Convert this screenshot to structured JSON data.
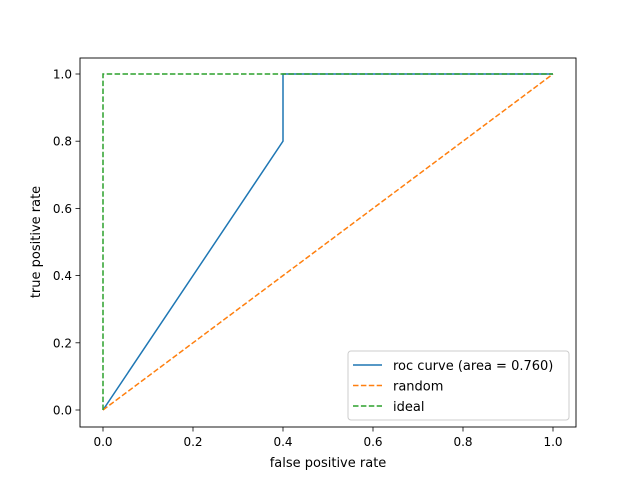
{
  "chart_data": {
    "type": "line",
    "title": "",
    "xlabel": "false positive rate",
    "ylabel": "true positive rate",
    "xlim": [
      -0.05,
      1.05
    ],
    "ylim": [
      -0.05,
      1.05
    ],
    "xticks": [
      "0.0",
      "0.2",
      "0.4",
      "0.6",
      "0.8",
      "1.0"
    ],
    "yticks": [
      "0.0",
      "0.2",
      "0.4",
      "0.6",
      "0.8",
      "1.0"
    ],
    "grid": false,
    "legend_position": "lower-right",
    "series": [
      {
        "name": "roc curve (area = 0.760)",
        "color": "#1f77b4",
        "style": "solid",
        "x": [
          0.0,
          0.4,
          0.4,
          1.0
        ],
        "y": [
          0.0,
          0.8,
          1.0,
          1.0
        ]
      },
      {
        "name": "random",
        "color": "#ff7f0e",
        "style": "dashed",
        "x": [
          0.0,
          1.0
        ],
        "y": [
          0.0,
          1.0
        ]
      },
      {
        "name": "ideal",
        "color": "#2ca02c",
        "style": "dashed",
        "x": [
          0.0,
          0.0,
          1.0
        ],
        "y": [
          0.0,
          1.0,
          1.0
        ]
      }
    ]
  }
}
